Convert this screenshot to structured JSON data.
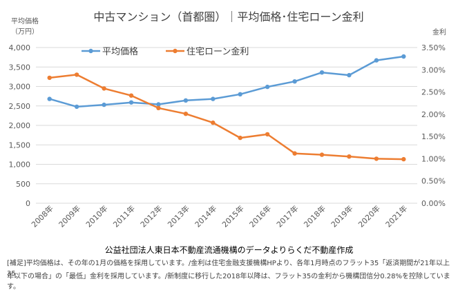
{
  "colors": {
    "avg_price": "#5B9BD5",
    "loan_rate": "#ED7D31",
    "grid": "#D9D9D9",
    "text": "#595959"
  },
  "chart_data": {
    "type": "line",
    "title": "中古マンション（首都圏）｜平均価格･住宅ローン金利",
    "left_axis_label_line1": "平均価格",
    "left_axis_label_line2": "（万円）",
    "right_axis_label": "金利",
    "categories": [
      "2008年",
      "2009年",
      "2010年",
      "2011年",
      "2012年",
      "2013年",
      "2014年",
      "2015年",
      "2016年",
      "2017年",
      "2018年",
      "2019年",
      "2020年",
      "2021年"
    ],
    "left_ticks": [
      "0",
      "500",
      "1,000",
      "1,500",
      "2,000",
      "2,500",
      "3,000",
      "3,500",
      "4,000"
    ],
    "right_ticks": [
      "0.00%",
      "0.50%",
      "1.00%",
      "1.50%",
      "2.00%",
      "2.50%",
      "3.00%",
      "3.50%"
    ],
    "left_ylim": [
      0,
      4000
    ],
    "right_ylim": [
      0,
      0.035
    ],
    "grid": true,
    "legend_position": "top-left",
    "series": [
      {
        "name": "平均価格",
        "axis": "left",
        "values": [
          2680,
          2480,
          2530,
          2590,
          2540,
          2640,
          2680,
          2800,
          2990,
          3130,
          3360,
          3290,
          3670,
          3770
        ]
      },
      {
        "name": "住宅ローン金利",
        "axis": "right",
        "values": [
          0.0282,
          0.0289,
          0.0258,
          0.0242,
          0.0214,
          0.0201,
          0.0181,
          0.0147,
          0.0155,
          0.0112,
          0.0109,
          0.0105,
          0.01,
          0.0099
        ]
      }
    ]
  },
  "footer": {
    "source": "公益社団法人東日本不動産流通機構のデータよりらくだ不動産作成",
    "note_line1": "[補足]平均価格は、その年の1月の価格を採用しています。/金利は住宅金融支援機構HPより、各年1月時点のフラット35「返済期間が21年以上35",
    "note_line2": "年以下の場合」の「最低」金利を採用しています。/新制度に移行した2018年以降は、フラット35の金利から機構団信分0.28%を控除しています。"
  }
}
